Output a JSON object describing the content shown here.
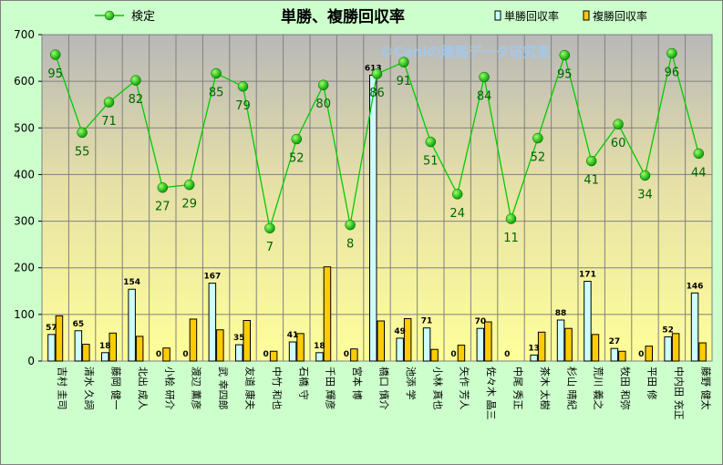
{
  "chart_data": {
    "type": "bar",
    "title": "単勝、複勝回収率",
    "watermark": "©Caniの競馬データ研究室",
    "ylim": [
      0,
      700
    ],
    "yticks": [
      0,
      100,
      200,
      300,
      400,
      500,
      600,
      700
    ],
    "grid": true,
    "legend_placement": "top",
    "categories": [
      "吉村 圭司",
      "清水 久詞",
      "藤岡 健一",
      "北出 成人",
      "小桧 研介",
      "渡辺 薫彦",
      "武 幸四郎",
      "友道 康夫",
      "中竹 和也",
      "石橋 守",
      "千田 輝彦",
      "宮本 博",
      "橋口 慎介",
      "池添 学",
      "小林 真也",
      "矢作 芳人",
      "佐々木 晶三",
      "中尾 秀正",
      "茶木 太樹",
      "杉山 晴紀",
      "荒川 義之",
      "牧田 和弥",
      "平田 修",
      "中内田 充正",
      "藤野 健太"
    ],
    "series": [
      {
        "name": "単勝回収率",
        "color": "#ccffff",
        "values": [
          57,
          65,
          18,
          154,
          0,
          0,
          167,
          35,
          0,
          41,
          18,
          0,
          613,
          49,
          71,
          0,
          70,
          0,
          13,
          88,
          171,
          27,
          0,
          52,
          146
        ]
      },
      {
        "name": "複勝回収率",
        "color": "#ffcc00",
        "values": [
          97,
          36,
          60,
          53,
          28,
          90,
          67,
          87,
          21,
          59,
          202,
          26,
          86,
          91,
          25,
          34,
          84,
          0,
          62,
          70,
          57,
          21,
          32,
          59,
          39
        ]
      },
      {
        "name": "検定",
        "color": "#00cc00",
        "type": "line",
        "labels": [
          95,
          55,
          71,
          82,
          27,
          29,
          85,
          79,
          7,
          52,
          80,
          8,
          86,
          91,
          51,
          24,
          84,
          11,
          52,
          95,
          41,
          60,
          34,
          96,
          44
        ],
        "values": [
          657,
          490,
          555,
          602,
          372,
          378,
          617,
          589,
          285,
          476,
          592,
          292,
          616,
          641,
          470,
          358,
          609,
          305,
          478,
          656,
          429,
          508,
          398,
          660,
          445
        ]
      }
    ]
  }
}
